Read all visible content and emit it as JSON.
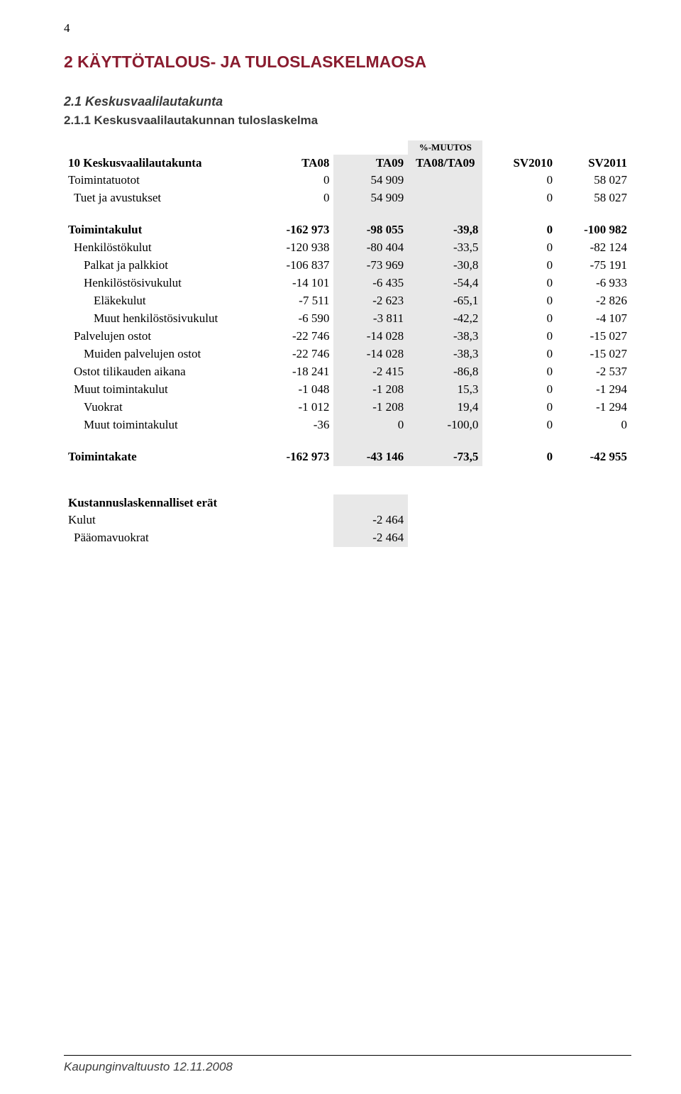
{
  "page_number": "4",
  "heading_main": "2 KÄYTTÖTALOUS- JA TULOSLASKELMAOSA",
  "heading_sub": "2.1 Keskusvaalilautakunta",
  "heading_sub2": "2.1.1 Keskusvaalilautakunnan tuloslaskelma",
  "table": {
    "entity_label_prefix": "10",
    "entity_label": "Keskusvaalilautakunta",
    "columns": {
      "ta08": "TA08",
      "ta09": "TA09",
      "pct_label_small": "%-MUUTOS",
      "pct_label": "TA08/TA09",
      "sv2010": "SV2010",
      "sv2011": "SV2011"
    },
    "rows": [
      {
        "label": "Toimintatuotot",
        "ta08": "0",
        "ta09": "54 909",
        "pct": "",
        "sv2010": "0",
        "sv2011": "58 027",
        "indent": 0,
        "bold": false
      },
      {
        "label": "Tuet ja avustukset",
        "ta08": "0",
        "ta09": "54 909",
        "pct": "",
        "sv2010": "0",
        "sv2011": "58 027",
        "indent": 1,
        "bold": false
      }
    ],
    "rows2": [
      {
        "label": "Toimintakulut",
        "ta08": "-162 973",
        "ta09": "-98 055",
        "pct": "-39,8",
        "sv2010": "0",
        "sv2011": "-100 982",
        "indent": 0,
        "bold": true
      },
      {
        "label": "Henkilöstökulut",
        "ta08": "-120 938",
        "ta09": "-80 404",
        "pct": "-33,5",
        "sv2010": "0",
        "sv2011": "-82 124",
        "indent": 1,
        "bold": false
      },
      {
        "label": "Palkat ja palkkiot",
        "ta08": "-106 837",
        "ta09": "-73 969",
        "pct": "-30,8",
        "sv2010": "0",
        "sv2011": "-75 191",
        "indent": 2,
        "bold": false
      },
      {
        "label": "Henkilöstösivukulut",
        "ta08": "-14 101",
        "ta09": "-6 435",
        "pct": "-54,4",
        "sv2010": "0",
        "sv2011": "-6 933",
        "indent": 2,
        "bold": false
      },
      {
        "label": "Eläkekulut",
        "ta08": "-7 511",
        "ta09": "-2 623",
        "pct": "-65,1",
        "sv2010": "0",
        "sv2011": "-2 826",
        "indent": 3,
        "bold": false
      },
      {
        "label": "Muut henkilöstösivukulut",
        "ta08": "-6 590",
        "ta09": "-3 811",
        "pct": "-42,2",
        "sv2010": "0",
        "sv2011": "-4 107",
        "indent": 3,
        "bold": false
      },
      {
        "label": "Palvelujen ostot",
        "ta08": "-22 746",
        "ta09": "-14 028",
        "pct": "-38,3",
        "sv2010": "0",
        "sv2011": "-15 027",
        "indent": 1,
        "bold": false
      },
      {
        "label": "Muiden palvelujen ostot",
        "ta08": "-22 746",
        "ta09": "-14 028",
        "pct": "-38,3",
        "sv2010": "0",
        "sv2011": "-15 027",
        "indent": 2,
        "bold": false
      },
      {
        "label": "Ostot tilikauden aikana",
        "ta08": "-18 241",
        "ta09": "-2 415",
        "pct": "-86,8",
        "sv2010": "0",
        "sv2011": "-2 537",
        "indent": 1,
        "bold": false
      },
      {
        "label": "Muut toimintakulut",
        "ta08": "-1 048",
        "ta09": "-1 208",
        "pct": "15,3",
        "sv2010": "0",
        "sv2011": "-1 294",
        "indent": 1,
        "bold": false
      },
      {
        "label": "Vuokrat",
        "ta08": "-1 012",
        "ta09": "-1 208",
        "pct": "19,4",
        "sv2010": "0",
        "sv2011": "-1 294",
        "indent": 2,
        "bold": false
      },
      {
        "label": "Muut toimintakulut",
        "ta08": "-36",
        "ta09": "0",
        "pct": "-100,0",
        "sv2010": "0",
        "sv2011": "0",
        "indent": 2,
        "bold": false
      }
    ],
    "toimintakate": {
      "label": "Toimintakate",
      "ta08": "-162 973",
      "ta09": "-43 146",
      "pct": "-73,5",
      "sv2010": "0",
      "sv2011": "-42 955"
    },
    "kust_label": "Kustannuslaskennalliset erät",
    "kulut": {
      "label": "Kulut",
      "ta09": "-2 464"
    },
    "paaoma": {
      "label": "Pääomavuokrat",
      "ta09": "-2 464"
    }
  },
  "footer": "Kaupunginvaltuusto 12.11.2008",
  "colors": {
    "heading": "#8a1c2f",
    "subheading": "#3a3a3a",
    "shade": "#e8e8e8",
    "text": "#000000",
    "bg": "#ffffff",
    "footer_text": "#3d3d3d"
  }
}
